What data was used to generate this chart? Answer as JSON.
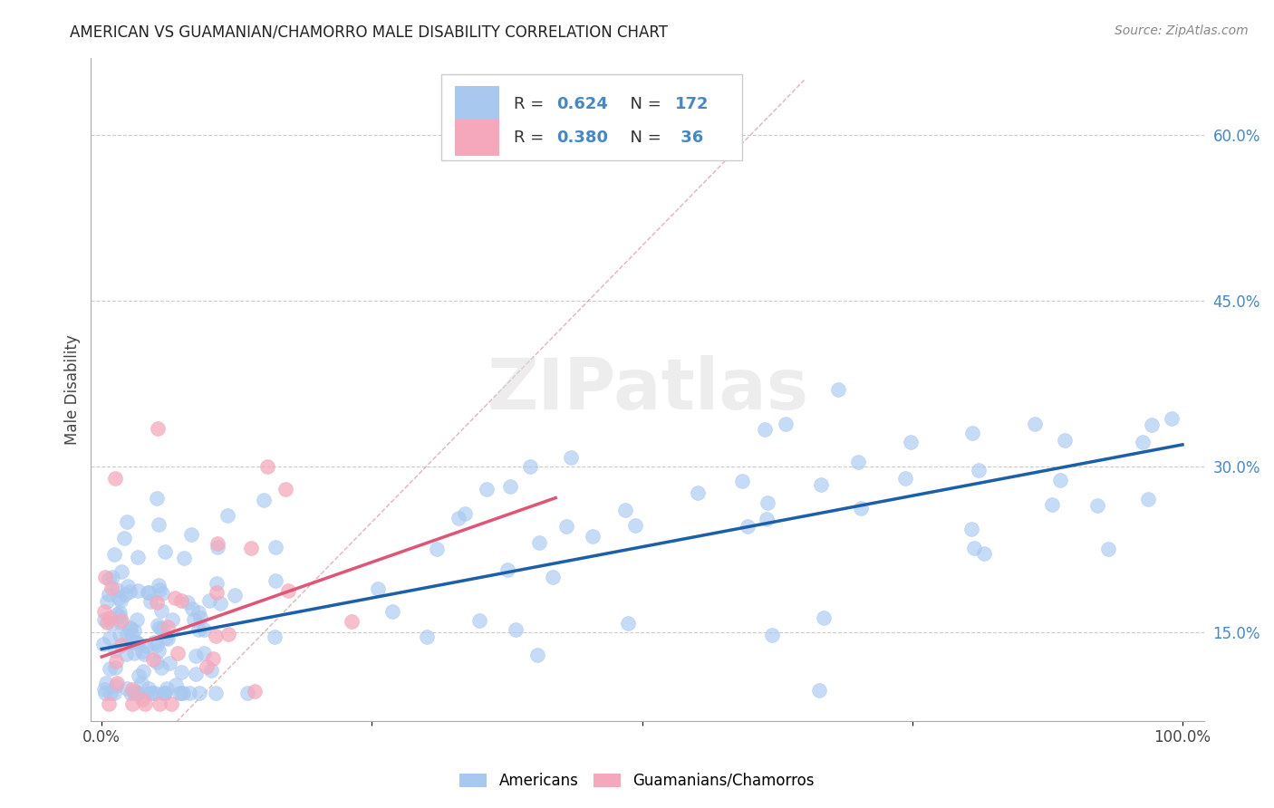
{
  "title": "AMERICAN VS GUAMANIAN/CHAMORRO MALE DISABILITY CORRELATION CHART",
  "source": "Source: ZipAtlas.com",
  "ylabel": "Male Disability",
  "legend_R_blue": "0.624",
  "legend_N_blue": "172",
  "legend_R_pink": "0.380",
  "legend_N_pink": " 36",
  "blue_color": "#a8c8f0",
  "pink_color": "#f5a8bc",
  "blue_line_color": "#1a5fa8",
  "pink_line_color": "#e05575",
  "diagonal_color": "#d9a0a8",
  "watermark": "ZIPatlas",
  "ytick_color": "#4488cc",
  "xtick_color": "#444444",
  "ylabel_color": "#444444"
}
